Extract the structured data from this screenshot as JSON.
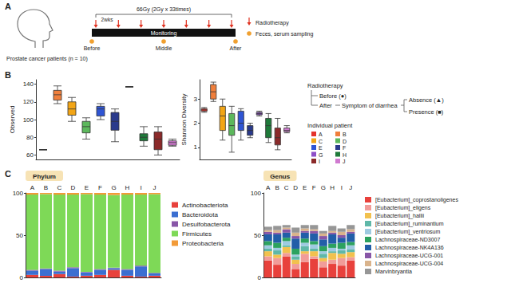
{
  "panel_labels": [
    "A",
    "B",
    "C"
  ],
  "diagram": {
    "subject": "Prostate cancer patients (n = 10)",
    "dose": "66Gy (2Gy x 33times)",
    "interval": "2wks",
    "bar_text": "Monitoring",
    "timepoints": [
      "Before",
      "Middle",
      "After"
    ],
    "legend": [
      {
        "label": "Radiotherapy",
        "marker": "arrow",
        "color": "#e0301e"
      },
      {
        "label": "Feces, serum sampling",
        "marker": "dot",
        "color": "#f0a030"
      }
    ]
  },
  "legend_b": {
    "title": "Radiotherapy",
    "before": "Before (●)",
    "after": "After",
    "symptom": "Symptom of diarrhea",
    "absence": "Absence (▲)",
    "presence": "Presence (■)",
    "patient_title": "Individual patient"
  },
  "chart_data": [
    {
      "type": "boxplot",
      "ylabel": "Observed",
      "categories": [
        "A",
        "B",
        "C",
        "D",
        "E",
        "F",
        "G",
        "H",
        "I",
        "J"
      ],
      "colors": [
        "#e5332a",
        "#f07f3c",
        "#f2a516",
        "#5cb85c",
        "#2f55d4",
        "#2a3a8c",
        "#8e4fc8",
        "#1f7a3a",
        "#8b2a2a",
        "#d07ad0"
      ],
      "values": [
        [
          66,
          66,
          66,
          66,
          66
        ],
        [
          118,
          122,
          128,
          133,
          138
        ],
        [
          98,
          105,
          112,
          120,
          125
        ],
        [
          78,
          85,
          92,
          98,
          102
        ],
        [
          100,
          104,
          112,
          115,
          118
        ],
        [
          75,
          88,
          98,
          108,
          112
        ],
        [
          137,
          137,
          137,
          137,
          137
        ],
        [
          70,
          76,
          80,
          84,
          92
        ],
        [
          60,
          66,
          78,
          86,
          92
        ],
        [
          70,
          71,
          74,
          76,
          78
        ]
      ],
      "ylim": [
        55,
        145
      ],
      "yticks": [
        60,
        80,
        100,
        120,
        140
      ],
      "tick_labels": "y",
      "grid": false
    },
    {
      "type": "boxplot",
      "ylabel": "Shannon Diversity",
      "categories": [
        "A",
        "B",
        "C",
        "D",
        "E",
        "F",
        "G",
        "H",
        "I",
        "J"
      ],
      "colors": [
        "#e5332a",
        "#f07f3c",
        "#f2a516",
        "#5cb85c",
        "#2f55d4",
        "#2a3a8c",
        "#8e4fc8",
        "#1f7a3a",
        "#8b2a2a",
        "#d07ad0"
      ],
      "values": [
        [
          2.45,
          2.5,
          2.55,
          2.6,
          2.65
        ],
        [
          2.9,
          3.0,
          3.3,
          3.6,
          3.7
        ],
        [
          1.3,
          1.7,
          2.3,
          2.7,
          3.0
        ],
        [
          0.8,
          1.5,
          1.9,
          2.4,
          2.7
        ],
        [
          1.3,
          1.7,
          2.0,
          2.5,
          2.6
        ],
        [
          1.4,
          1.5,
          1.7,
          1.9,
          2.0
        ],
        [
          2.3,
          2.35,
          2.4,
          2.45,
          2.5
        ],
        [
          1.2,
          1.4,
          1.9,
          2.2,
          2.4
        ],
        [
          0.9,
          1.1,
          1.4,
          1.8,
          2.2
        ],
        [
          1.6,
          1.65,
          1.7,
          1.8,
          1.9
        ]
      ],
      "ylim": [
        0.5,
        3.8
      ],
      "yticks": [
        1,
        2,
        3
      ],
      "tick_labels": "y",
      "grid": false
    },
    {
      "type": "bar",
      "title": "Phylum",
      "categories": [
        "A",
        "B",
        "C",
        "D",
        "E",
        "F",
        "G",
        "H",
        "I",
        "J"
      ],
      "stacked": true,
      "legend": "right",
      "series": [
        {
          "name": "Actinobacteriota",
          "color": "#e8413c",
          "values": [
            3,
            2,
            4,
            1,
            2,
            3,
            9,
            2,
            1,
            2
          ]
        },
        {
          "name": "Bacteroidota",
          "color": "#3b6fd1",
          "values": [
            5,
            8,
            3,
            10,
            4,
            6,
            2,
            7,
            12,
            3
          ]
        },
        {
          "name": "Desulfobacterota",
          "color": "#8856a7",
          "values": [
            1,
            0.5,
            1,
            1,
            0.5,
            1,
            0.5,
            1,
            1,
            0.5
          ]
        },
        {
          "name": "Firmicutes",
          "color": "#7ed957",
          "values": [
            89,
            88,
            90,
            86,
            92,
            88,
            86,
            88,
            84,
            93
          ]
        },
        {
          "name": "Proteobacteria",
          "color": "#f29b38",
          "values": [
            2,
            1.5,
            2,
            2,
            1.5,
            2,
            2.5,
            2,
            2,
            1.5
          ]
        }
      ],
      "ylim": [
        0,
        100
      ],
      "yticks": [
        0,
        50,
        100
      ],
      "tick_labels": true,
      "grid": false
    },
    {
      "type": "bar",
      "title": "Genus",
      "categories": [
        "A",
        "B",
        "C",
        "D",
        "E",
        "F",
        "G",
        "H",
        "I",
        "J"
      ],
      "stacked": true,
      "legend": "right",
      "series": [
        {
          "name": "[Eubacterium]_coprostanoligenes",
          "color": "#e8413c",
          "values": [
            20,
            15,
            25,
            10,
            18,
            22,
            12,
            16,
            14,
            20
          ]
        },
        {
          "name": "[Eubacterium]_eligens",
          "color": "#f19c99",
          "values": [
            5,
            8,
            4,
            6,
            10,
            3,
            7,
            5,
            9,
            4
          ]
        },
        {
          "name": "[Eubacterium]_hallii",
          "color": "#f2c14e",
          "values": [
            6,
            4,
            7,
            5,
            3,
            6,
            4,
            8,
            5,
            6
          ]
        },
        {
          "name": "[Eubacterium]_ruminantium",
          "color": "#5fb8a8",
          "values": [
            3,
            5,
            2,
            4,
            6,
            3,
            5,
            2,
            4,
            3
          ]
        },
        {
          "name": "[Eubacterium]_ventriosum",
          "color": "#9ecae1",
          "values": [
            4,
            3,
            5,
            2,
            4,
            5,
            3,
            4,
            2,
            5
          ]
        },
        {
          "name": "Lachnospiraceae-ND3007",
          "color": "#2ca25f",
          "values": [
            5,
            6,
            4,
            7,
            5,
            4,
            6,
            5,
            7,
            4
          ]
        },
        {
          "name": "Lachnospiraceae-NK4A136",
          "color": "#225ea8",
          "values": [
            8,
            10,
            6,
            12,
            7,
            9,
            8,
            11,
            6,
            10
          ]
        },
        {
          "name": "Lachnospiraceae-UCG-001",
          "color": "#8856a7",
          "values": [
            3,
            2,
            4,
            3,
            2,
            3,
            4,
            2,
            3,
            2
          ]
        },
        {
          "name": "Lachnospiraceae-UCG-004",
          "color": "#d9b38c",
          "values": [
            2,
            3,
            2,
            4,
            3,
            2,
            3,
            2,
            4,
            3
          ]
        },
        {
          "name": "Marvinbryantia",
          "color": "#969696",
          "values": [
            4,
            5,
            3,
            6,
            4,
            5,
            3,
            6,
            4,
            5
          ]
        }
      ],
      "ylim": [
        0,
        100
      ],
      "yticks": [
        0,
        50,
        100
      ],
      "tick_labels": true,
      "grid": false
    }
  ]
}
